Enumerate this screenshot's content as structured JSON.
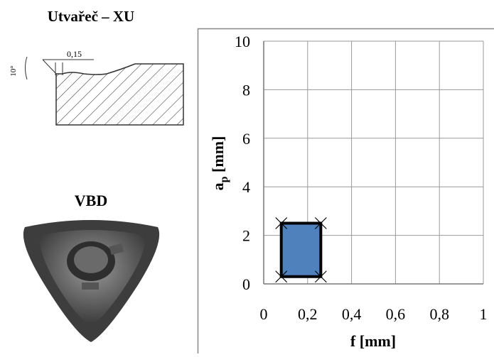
{
  "panel": {
    "title": "Utvařeč – XU",
    "angle_label": "10°",
    "width_label": "0,15",
    "insert_label": "VBD"
  },
  "chart_data": {
    "type": "region",
    "x_label": "f [mm]",
    "y_label": {
      "main": "a",
      "sub": "p",
      "unit": " [mm]"
    },
    "region": {
      "x": [
        0.08,
        0.26
      ],
      "y": [
        0.3,
        2.5
      ],
      "color": "#4f81bd"
    },
    "xlim": [
      0,
      1
    ],
    "ylim": [
      0,
      10
    ],
    "xticks": [
      0,
      {
        "value": 0.2,
        "label": "0,2"
      },
      {
        "value": 0.4,
        "label": "0,4"
      },
      {
        "value": 0.6,
        "label": "0,6"
      },
      {
        "value": 0.8,
        "label": "0,8"
      },
      1
    ],
    "yticks": [
      0,
      2,
      4,
      6,
      8,
      10
    ],
    "grid": true
  }
}
